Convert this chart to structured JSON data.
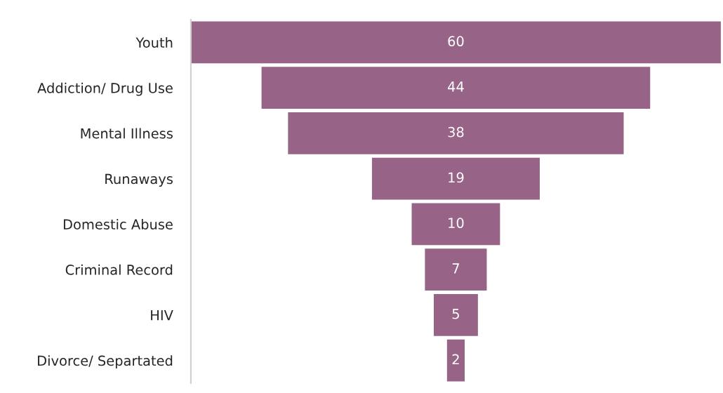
{
  "chart_data": {
    "type": "other",
    "categories": [
      "Youth",
      "Addiction/ Drug Use",
      "Mental Illness",
      "Runaways",
      "Domestic Abuse",
      "Criminal Record",
      "HIV",
      "Divorce/ Separtated"
    ],
    "values": [
      60,
      44,
      38,
      19,
      10,
      7,
      5,
      2
    ],
    "color": "#976487",
    "data_labels": true
  }
}
